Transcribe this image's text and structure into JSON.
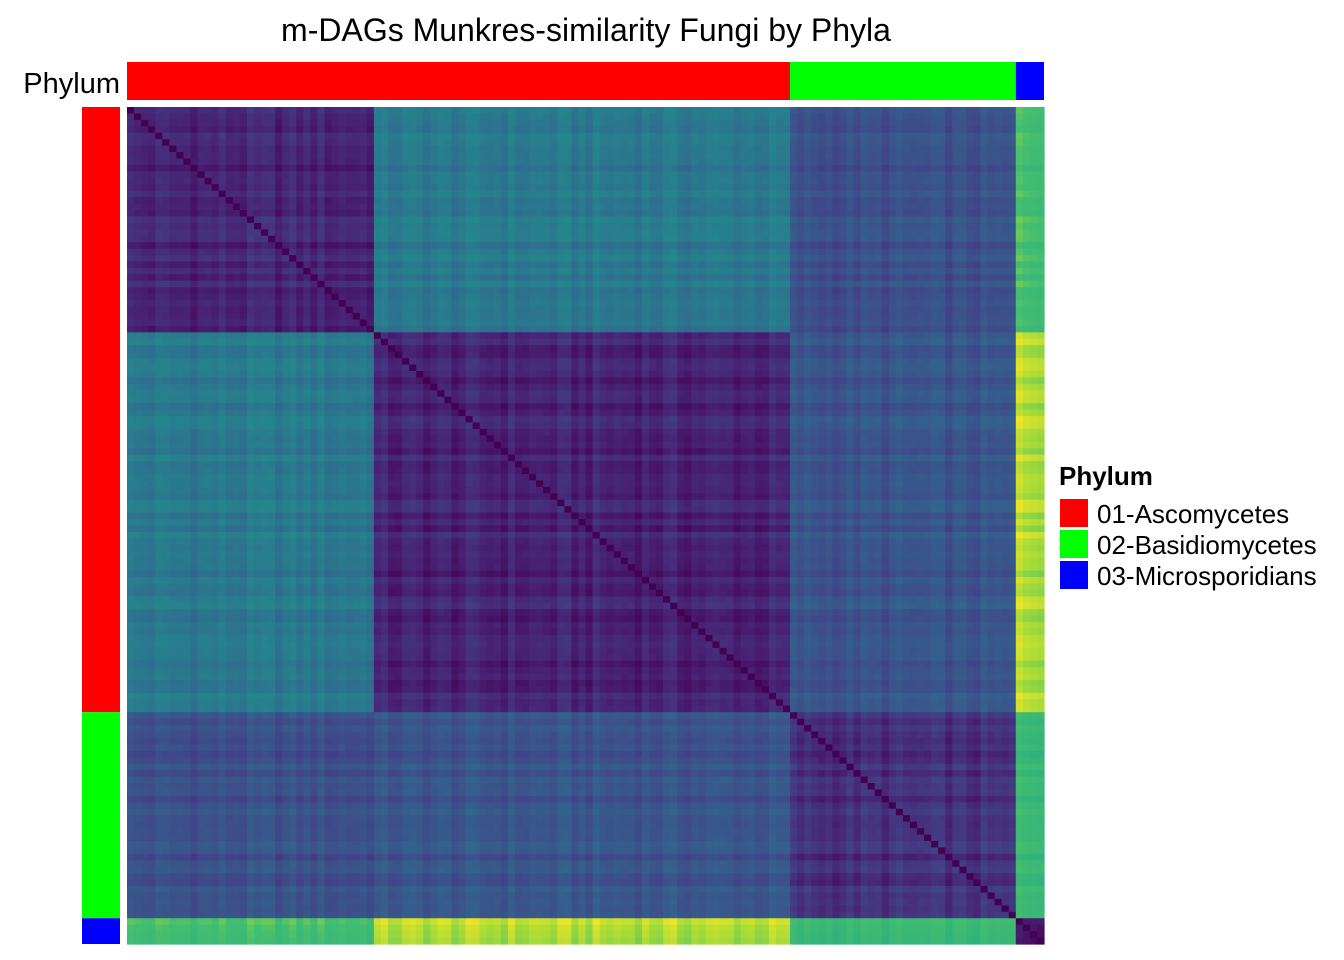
{
  "chart_data": {
    "type": "heatmap",
    "title": "m-DAGs Munkres-similarity  Fungi by Phyla",
    "annotation_label": "Phylum",
    "colorscale": "viridis",
    "diagonal_value": 0.0,
    "groups": [
      {
        "name": "01-Ascomycetes",
        "color": "#ff0000",
        "count": 94
      },
      {
        "name": "02-Basidiomycetes",
        "color": "#00ff00",
        "count": 32
      },
      {
        "name": "03-Microsporidians",
        "color": "#0000ff",
        "count": 4
      }
    ],
    "row_order": [
      "01-Ascomycetes",
      "02-Basidiomycetes",
      "03-Microsporidians"
    ],
    "column_order": [
      "01-Ascomycetes",
      "02-Basidiomycetes",
      "03-Microsporidians"
    ],
    "clusters": [
      {
        "group": "01-Ascomycetes",
        "size": 35,
        "within_value": 0.13
      },
      {
        "group": "01-Ascomycetes",
        "size": 59,
        "within_value": 0.12
      },
      {
        "group": "02-Basidiomycetes",
        "size": 32,
        "within_value": 0.16
      },
      {
        "group": "03-Microsporidians",
        "size": 4,
        "within_value": 0.12
      }
    ],
    "cluster_between_values": [
      [
        0.13,
        0.5,
        0.3,
        0.88
      ],
      [
        0.5,
        0.12,
        0.32,
        0.96
      ],
      [
        0.3,
        0.32,
        0.16,
        0.85
      ],
      [
        0.88,
        0.96,
        0.85,
        0.12
      ]
    ],
    "legend": {
      "title": "Phylum",
      "entries": [
        "01-Ascomycetes",
        "02-Basidiomycetes",
        "03-Microsporidians"
      ],
      "position": "right"
    }
  }
}
